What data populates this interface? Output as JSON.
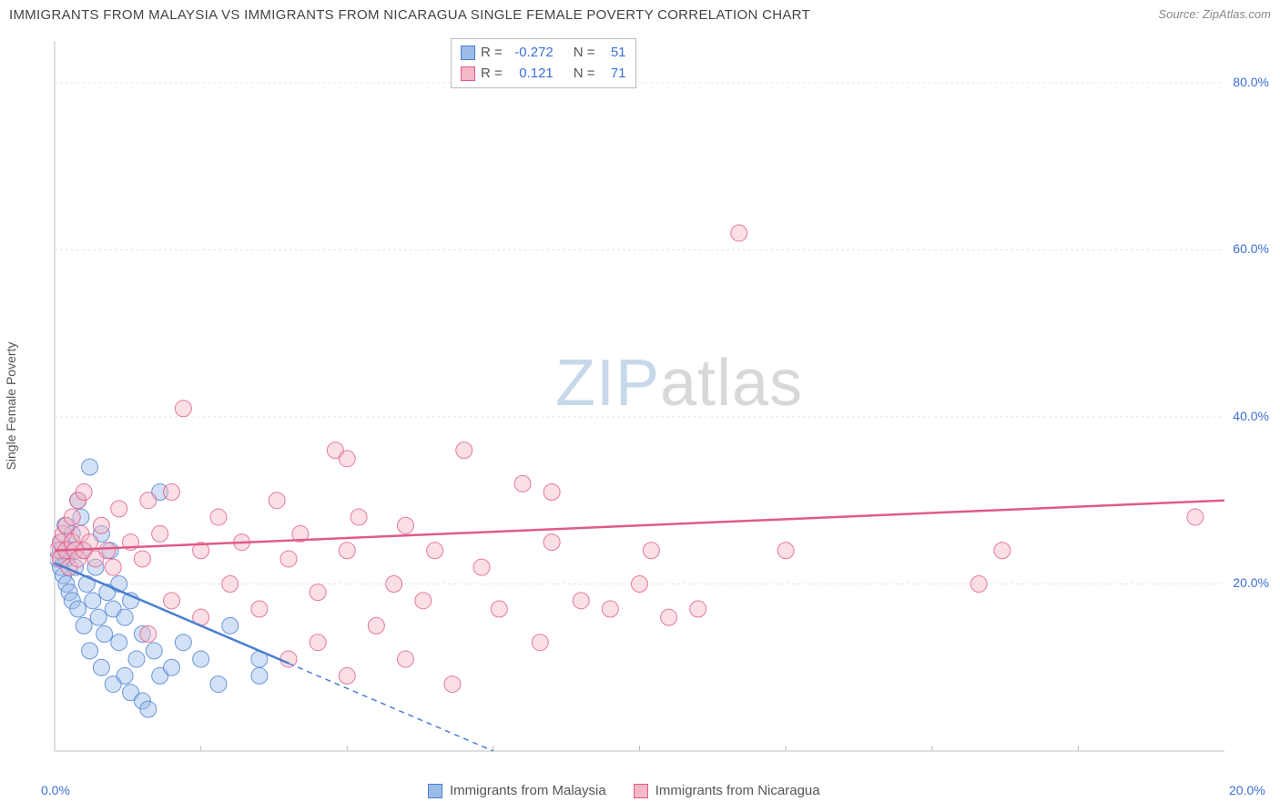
{
  "header": {
    "title": "IMMIGRANTS FROM MALAYSIA VS IMMIGRANTS FROM NICARAGUA SINGLE FEMALE POVERTY CORRELATION CHART",
    "source_label": "Source:",
    "source_name": "ZipAtlas.com"
  },
  "watermark": {
    "zip": "ZIP",
    "atlas": "atlas"
  },
  "chart": {
    "type": "scatter",
    "ylabel": "Single Female Poverty",
    "xlim": [
      0,
      20
    ],
    "ylim": [
      0,
      85
    ],
    "xtick_labels": [
      "0.0%",
      "20.0%"
    ],
    "ytick_labels": [
      "20.0%",
      "40.0%",
      "60.0%",
      "80.0%"
    ],
    "ytick_values": [
      20,
      40,
      60,
      80
    ],
    "xtick_minor": [
      2.5,
      5,
      7.5,
      10,
      12.5,
      15,
      17.5
    ],
    "grid_color": "#e6e6e6",
    "axis_color": "#bdbdbd",
    "background_color": "#ffffff",
    "point_radius": 9,
    "point_opacity": 0.45,
    "series": [
      {
        "name": "Immigrants from Malaysia",
        "color_fill": "#9bbce8",
        "color_stroke": "#4a7fd1",
        "R": "-0.272",
        "N": "51",
        "trend": {
          "x1": 0,
          "y1": 22.5,
          "x2": 7.5,
          "y2": 0,
          "style": "solid_then_dash",
          "solid_end_x": 4.0
        },
        "points": [
          [
            0.05,
            23
          ],
          [
            0.1,
            24
          ],
          [
            0.1,
            22
          ],
          [
            0.12,
            25
          ],
          [
            0.15,
            21
          ],
          [
            0.18,
            27
          ],
          [
            0.2,
            23
          ],
          [
            0.2,
            20
          ],
          [
            0.25,
            24
          ],
          [
            0.25,
            19
          ],
          [
            0.3,
            26
          ],
          [
            0.3,
            18
          ],
          [
            0.35,
            22
          ],
          [
            0.4,
            30
          ],
          [
            0.4,
            17
          ],
          [
            0.45,
            28
          ],
          [
            0.5,
            24
          ],
          [
            0.5,
            15
          ],
          [
            0.55,
            20
          ],
          [
            0.6,
            34
          ],
          [
            0.6,
            12
          ],
          [
            0.65,
            18
          ],
          [
            0.7,
            22
          ],
          [
            0.75,
            16
          ],
          [
            0.8,
            26
          ],
          [
            0.8,
            10
          ],
          [
            0.85,
            14
          ],
          [
            0.9,
            19
          ],
          [
            0.95,
            24
          ],
          [
            1.0,
            17
          ],
          [
            1.0,
            8
          ],
          [
            1.1,
            20
          ],
          [
            1.1,
            13
          ],
          [
            1.2,
            9
          ],
          [
            1.2,
            16
          ],
          [
            1.3,
            7
          ],
          [
            1.3,
            18
          ],
          [
            1.4,
            11
          ],
          [
            1.5,
            14
          ],
          [
            1.5,
            6
          ],
          [
            1.6,
            5
          ],
          [
            1.7,
            12
          ],
          [
            1.8,
            31
          ],
          [
            1.8,
            9
          ],
          [
            2.0,
            10
          ],
          [
            2.2,
            13
          ],
          [
            2.5,
            11
          ],
          [
            2.8,
            8
          ],
          [
            3.0,
            15
          ],
          [
            3.5,
            11
          ],
          [
            3.5,
            9
          ]
        ]
      },
      {
        "name": "Immigrants from Nicaragua",
        "color_fill": "#f4b8c6",
        "color_stroke": "#e05a8a",
        "R": "0.121",
        "N": "71",
        "trend": {
          "x1": 0,
          "y1": 24,
          "x2": 20,
          "y2": 30,
          "style": "solid"
        },
        "points": [
          [
            0.05,
            24
          ],
          [
            0.1,
            25
          ],
          [
            0.1,
            23
          ],
          [
            0.15,
            26
          ],
          [
            0.2,
            24
          ],
          [
            0.2,
            27
          ],
          [
            0.25,
            22
          ],
          [
            0.3,
            25
          ],
          [
            0.3,
            28
          ],
          [
            0.35,
            24
          ],
          [
            0.4,
            30
          ],
          [
            0.4,
            23
          ],
          [
            0.45,
            26
          ],
          [
            0.5,
            24
          ],
          [
            0.5,
            31
          ],
          [
            0.6,
            25
          ],
          [
            0.7,
            23
          ],
          [
            0.8,
            27
          ],
          [
            0.9,
            24
          ],
          [
            1.0,
            22
          ],
          [
            1.1,
            29
          ],
          [
            1.3,
            25
          ],
          [
            1.5,
            23
          ],
          [
            1.6,
            30
          ],
          [
            1.6,
            14
          ],
          [
            1.8,
            26
          ],
          [
            2.0,
            31
          ],
          [
            2.0,
            18
          ],
          [
            2.2,
            41
          ],
          [
            2.5,
            24
          ],
          [
            2.5,
            16
          ],
          [
            2.8,
            28
          ],
          [
            3.0,
            20
          ],
          [
            3.2,
            25
          ],
          [
            3.5,
            17
          ],
          [
            3.8,
            30
          ],
          [
            4.0,
            23
          ],
          [
            4.0,
            11
          ],
          [
            4.2,
            26
          ],
          [
            4.5,
            19
          ],
          [
            4.5,
            13
          ],
          [
            4.8,
            36
          ],
          [
            5.0,
            35
          ],
          [
            5.0,
            24
          ],
          [
            5.0,
            9
          ],
          [
            5.2,
            28
          ],
          [
            5.5,
            15
          ],
          [
            5.8,
            20
          ],
          [
            6.0,
            27
          ],
          [
            6.0,
            11
          ],
          [
            6.3,
            18
          ],
          [
            6.5,
            24
          ],
          [
            6.8,
            8
          ],
          [
            7.0,
            36
          ],
          [
            7.3,
            22
          ],
          [
            7.6,
            17
          ],
          [
            8.0,
            32
          ],
          [
            8.3,
            13
          ],
          [
            8.5,
            31
          ],
          [
            8.5,
            25
          ],
          [
            9.0,
            18
          ],
          [
            9.5,
            17
          ],
          [
            10.0,
            20
          ],
          [
            10.2,
            24
          ],
          [
            10.5,
            16
          ],
          [
            11.0,
            17
          ],
          [
            11.7,
            62
          ],
          [
            12.5,
            24
          ],
          [
            15.8,
            20
          ],
          [
            16.2,
            24
          ],
          [
            19.5,
            28
          ]
        ]
      }
    ],
    "legend_entries": [
      {
        "label": "Immigrants from Malaysia",
        "fill": "#9bbce8",
        "stroke": "#4a7fd1"
      },
      {
        "label": "Immigrants from Nicaragua",
        "fill": "#f4b8c6",
        "stroke": "#e05a8a"
      }
    ],
    "stats_box": {
      "r_label": "R =",
      "n_label": "N ="
    }
  }
}
